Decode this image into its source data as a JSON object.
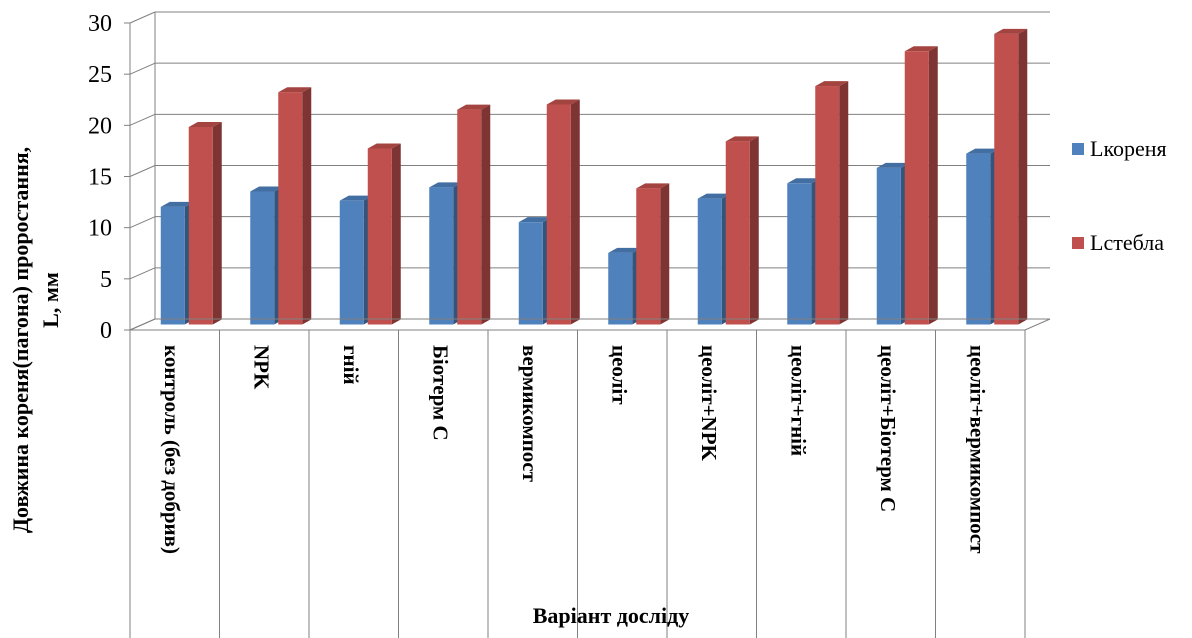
{
  "chart_data": {
    "type": "bar",
    "title": "",
    "xlabel": "Варіант досліду",
    "ylabel_line1": "Довжина кореня(пагона) проростання,",
    "ylabel_line2": "L, мм",
    "ylim": [
      0,
      30
    ],
    "yticks": [
      0,
      5,
      10,
      15,
      20,
      25,
      30
    ],
    "grid": true,
    "legend_position": "right",
    "categories": [
      "контроль (без добрив)",
      "NPK",
      "гній",
      "Біотерм С",
      "вермикомпост",
      "цеоліт",
      "цеоліт+NPK",
      "цеоліт+гній",
      "цеоліт+Біотерм С",
      "цеоліт+вермикомпост"
    ],
    "series": [
      {
        "name": "Lкореня",
        "color": "#4f81bd",
        "values": [
          11.5,
          13.0,
          12.1,
          13.4,
          10.0,
          7.0,
          12.3,
          13.8,
          15.3,
          16.7
        ]
      },
      {
        "name": "Lстебла",
        "color": "#c0504d",
        "values": [
          19.3,
          22.7,
          17.2,
          21.0,
          21.5,
          13.3,
          17.9,
          23.3,
          26.7,
          28.4
        ]
      }
    ]
  }
}
